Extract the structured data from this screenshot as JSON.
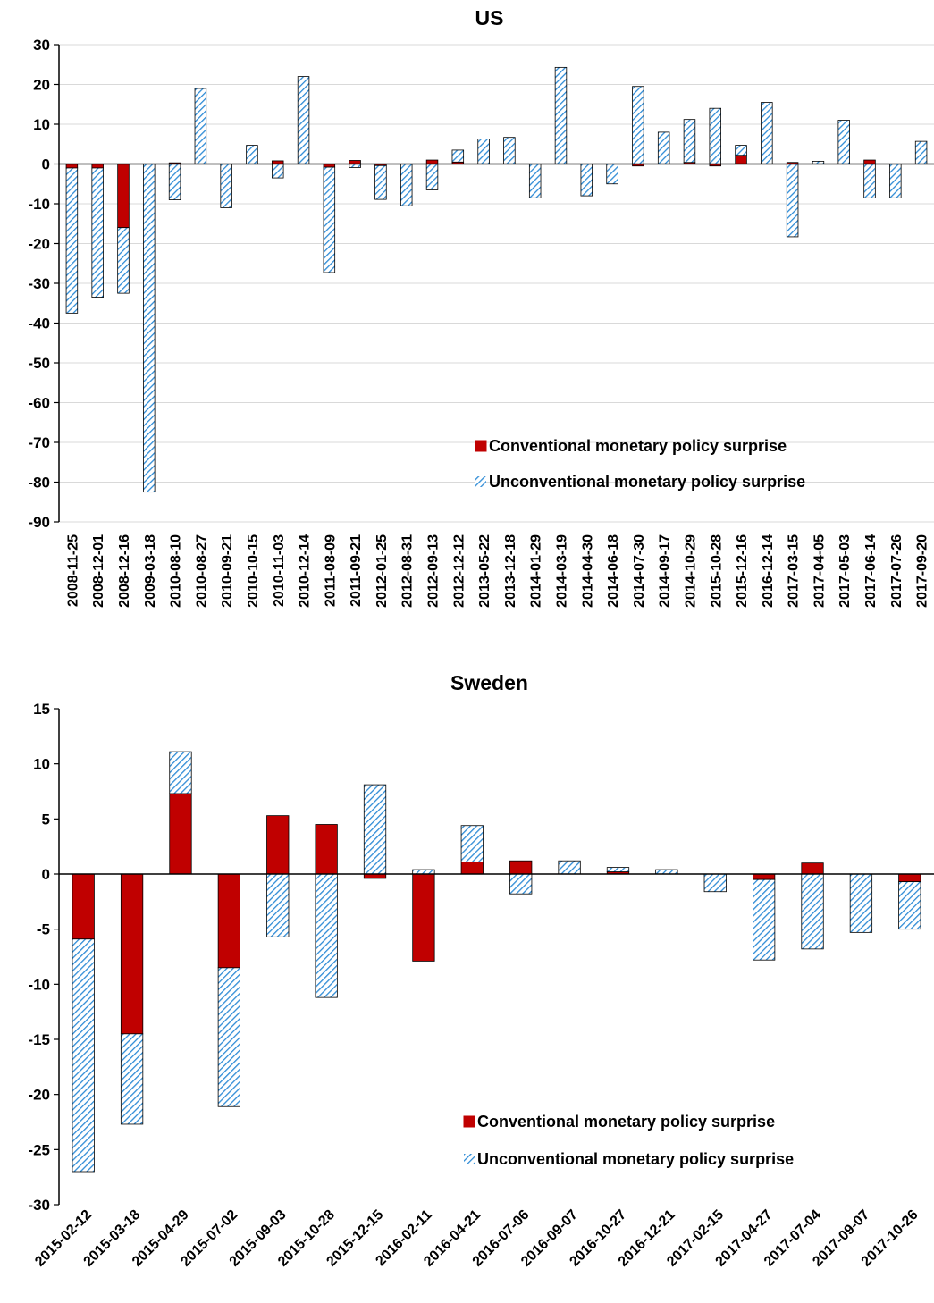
{
  "chart_data": [
    {
      "type": "bar",
      "stacked": true,
      "title": "US",
      "ylim": [
        -90,
        30
      ],
      "yticks": [
        30,
        20,
        10,
        0,
        -10,
        -20,
        -30,
        -40,
        -50,
        -60,
        -70,
        -80,
        -90
      ],
      "grid": true,
      "legend_position": "lower-right",
      "categories": [
        "2008-11-25",
        "2008-12-01",
        "2008-12-16",
        "2009-03-18",
        "2010-08-10",
        "2010-08-27",
        "2010-09-21",
        "2010-10-15",
        "2010-11-03",
        "2010-12-14",
        "2011-08-09",
        "2011-09-21",
        "2012-01-25",
        "2012-08-31",
        "2012-09-13",
        "2012-12-12",
        "2013-05-22",
        "2013-12-18",
        "2014-01-29",
        "2014-03-19",
        "2014-04-30",
        "2014-06-18",
        "2014-07-30",
        "2014-09-17",
        "2014-10-29",
        "2015-10-28",
        "2015-12-16",
        "2016-12-14",
        "2017-03-15",
        "2017-04-05",
        "2017-05-03",
        "2017-06-14",
        "2017-07-26",
        "2017-09-20"
      ],
      "series": [
        {
          "name": "Conventional monetary policy surprise",
          "color": "#c00000",
          "pattern": "solid",
          "values": [
            -1,
            -1,
            -16,
            0,
            0.3,
            0,
            0,
            0,
            0.8,
            0,
            -0.8,
            0.9,
            -0.4,
            0,
            1,
            0.5,
            0,
            0,
            0,
            0,
            0,
            0,
            -0.5,
            0,
            0.4,
            -0.5,
            2.2,
            0,
            0.4,
            0,
            0,
            1,
            0,
            0
          ]
        },
        {
          "name": "Unconventional monetary policy surprise",
          "color": "#2e8bd6",
          "pattern": "hatched",
          "values": [
            -36.5,
            -32.5,
            -16.5,
            -82.5,
            -9,
            19,
            -11,
            4.7,
            -3.5,
            22,
            -26.5,
            -0.9,
            -8.5,
            -10.5,
            -6.5,
            3,
            6.3,
            6.7,
            -8.5,
            24.3,
            -8,
            -5,
            19.5,
            8,
            10.8,
            14,
            2.5,
            15.5,
            -18.3,
            0.7,
            11,
            -8.5,
            -8.5,
            5.7
          ]
        }
      ]
    },
    {
      "type": "bar",
      "stacked": true,
      "title": "Sweden",
      "ylim": [
        -30,
        15
      ],
      "yticks": [
        15,
        10,
        5,
        0,
        -5,
        -10,
        -15,
        -20,
        -25,
        -30
      ],
      "grid": false,
      "legend_position": "lower-right",
      "categories": [
        "2015-02-12",
        "2015-03-18",
        "2015-04-29",
        "2015-07-02",
        "2015-09-03",
        "2015-10-28",
        "2015-12-15",
        "2016-02-11",
        "2016-04-21",
        "2016-07-06",
        "2016-09-07",
        "2016-10-27",
        "2016-12-21",
        "2017-02-15",
        "2017-04-27",
        "2017-07-04",
        "2017-09-07",
        "2017-10-26"
      ],
      "series": [
        {
          "name": "Conventional monetary policy surprise",
          "color": "#c00000",
          "pattern": "solid",
          "values": [
            -5.9,
            -14.5,
            7.3,
            -8.5,
            5.3,
            4.5,
            -0.4,
            -7.9,
            1.1,
            1.2,
            0,
            0.2,
            0,
            0,
            -0.5,
            1,
            0,
            -0.7
          ]
        },
        {
          "name": "Unconventional monetary policy surprise",
          "color": "#2e8bd6",
          "pattern": "hatched",
          "values": [
            -21.1,
            -8.2,
            3.8,
            -12.6,
            -5.7,
            -11.2,
            8.1,
            0.4,
            3.3,
            -1.8,
            1.2,
            0.4,
            0.4,
            -1.6,
            -7.3,
            -6.8,
            -5.3,
            -4.3
          ]
        }
      ]
    }
  ]
}
